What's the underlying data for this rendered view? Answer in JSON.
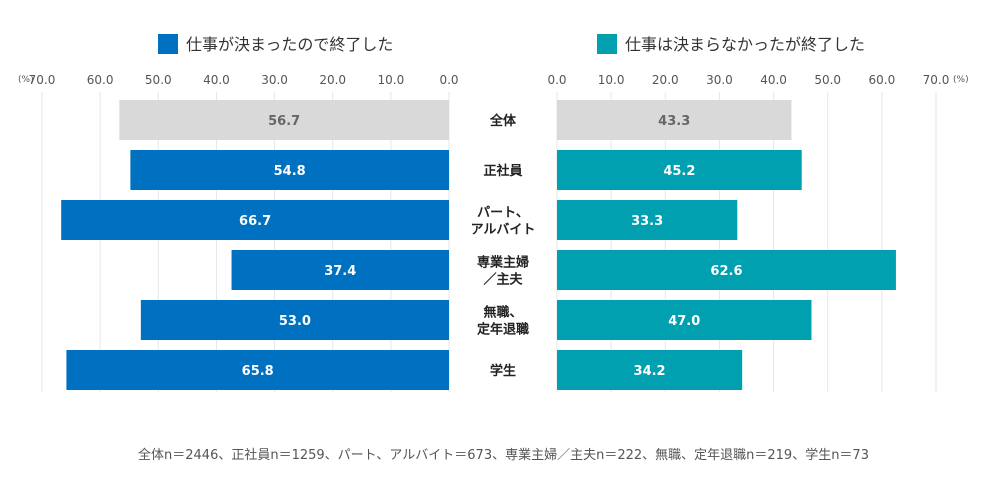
{
  "chart_data": {
    "type": "bar",
    "orientation": "horizontal-diverging",
    "unit": "(%)",
    "categories": [
      "全体",
      "正社員",
      "パート、\nアルバイト",
      "専業主婦\n／主夫",
      "無職、\n定年退職",
      "学生"
    ],
    "series": [
      {
        "name": "仕事が決まったので終了した",
        "side": "left",
        "color": "#0070C0",
        "highlight_color": "#D9D9D9",
        "values": [
          56.7,
          54.8,
          66.7,
          37.4,
          53.0,
          65.8
        ]
      },
      {
        "name": "仕事は決まらなかったが終了した",
        "side": "right",
        "color": "#00A0B0",
        "highlight_color": "#D9D9D9",
        "values": [
          43.3,
          45.2,
          33.3,
          62.6,
          47.0,
          34.2
        ]
      }
    ],
    "highlight_first_category": true,
    "left_ticks": [
      "70.0",
      "60.0",
      "50.0",
      "40.0",
      "30.0",
      "20.0",
      "10.0",
      "0.0"
    ],
    "right_ticks": [
      "0.0",
      "10.0",
      "20.0",
      "30.0",
      "40.0",
      "50.0",
      "60.0",
      "70.0"
    ],
    "xlim": [
      0,
      70
    ]
  },
  "footnote": "全体n＝2446、正社員n＝1259、パート、アルバイト＝673、専業主婦／主夫n＝222、無職、定年退職n＝219、学生n＝73"
}
